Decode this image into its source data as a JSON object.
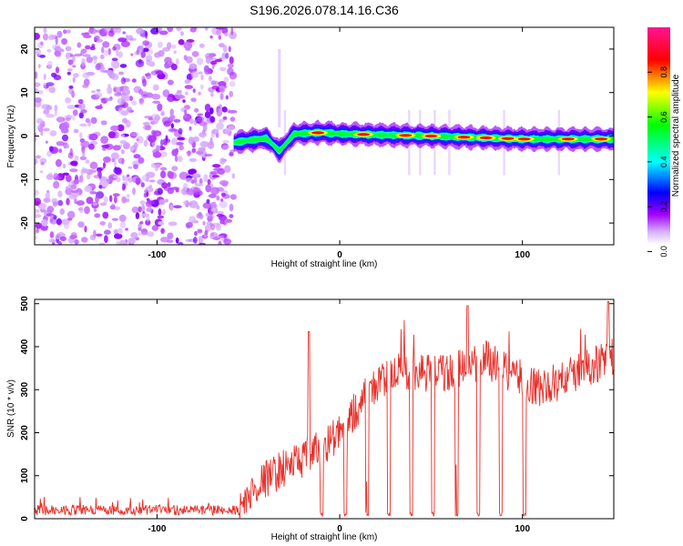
{
  "title": "S196.2026.078.14.16.C36",
  "chart_data": [
    {
      "type": "heatmap",
      "name": "spectrogram",
      "xlabel": "Height of straight line (km)",
      "ylabel": "Frequency (Hz)",
      "xlim": [
        -167,
        150
      ],
      "ylim": [
        -25,
        25
      ],
      "xticks": [
        -100,
        0,
        100
      ],
      "yticks": [
        -20,
        -10,
        0,
        10,
        20
      ],
      "colorbar": {
        "label": "Normalized spectral amplitude",
        "range": [
          0,
          1
        ],
        "ticks": [
          "0.0",
          "0.2",
          "0.4",
          "0.6",
          "0.8"
        ],
        "colors": [
          "#ffffff",
          "#a000ff",
          "#0000ff",
          "#00ffff",
          "#00ff00",
          "#ffff00",
          "#ff0000",
          "#ff1493"
        ]
      },
      "noise_region_end_x": -58,
      "ridge_center_hz": [
        {
          "x": -58,
          "y": -1.5
        },
        {
          "x": -50,
          "y": -1.0
        },
        {
          "x": -40,
          "y": -0.5
        },
        {
          "x": -33,
          "y": -3.5
        },
        {
          "x": -25,
          "y": 0.5
        },
        {
          "x": -10,
          "y": 0.8
        },
        {
          "x": 0,
          "y": 0.5
        },
        {
          "x": 50,
          "y": 0.0
        },
        {
          "x": 100,
          "y": -0.7
        },
        {
          "x": 150,
          "y": -0.7
        }
      ],
      "peak_x_km": [
        -12,
        13,
        36,
        50,
        68,
        80,
        92,
        101,
        125,
        143
      ]
    },
    {
      "type": "line",
      "name": "snr",
      "xlabel": "Height of straight line (km)",
      "ylabel": "SNR (10 * v/v)",
      "xlim": [
        -167,
        150
      ],
      "ylim": [
        0,
        510
      ],
      "xticks": [
        -100,
        0,
        100
      ],
      "yticks": [
        0,
        100,
        200,
        300,
        400,
        500
      ],
      "color": "#e8302a",
      "baseline_trend": [
        {
          "x": -167,
          "y": 18
        },
        {
          "x": -55,
          "y": 18
        },
        {
          "x": -45,
          "y": 80
        },
        {
          "x": -30,
          "y": 120
        },
        {
          "x": -15,
          "y": 150
        },
        {
          "x": 0,
          "y": 200
        },
        {
          "x": 15,
          "y": 290
        },
        {
          "x": 30,
          "y": 340
        },
        {
          "x": 60,
          "y": 340
        },
        {
          "x": 80,
          "y": 370
        },
        {
          "x": 110,
          "y": 300
        },
        {
          "x": 150,
          "y": 380
        }
      ],
      "spike_peaks": [
        {
          "x": -17,
          "y": 435
        },
        {
          "x": 70,
          "y": 495
        },
        {
          "x": 147,
          "y": 505
        }
      ],
      "dropouts_x_km": [
        -10,
        3,
        15,
        27,
        39,
        51,
        64,
        76,
        88,
        101
      ]
    }
  ]
}
